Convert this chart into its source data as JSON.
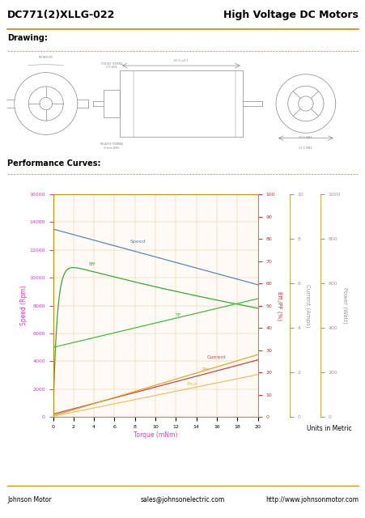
{
  "title_left": "DC771(2)XLLG-022",
  "title_right": "High Voltage DC Motors",
  "section_drawing": "Drawing:",
  "section_curves": "Performance Curves:",
  "xlabel": "Torque (mNm)",
  "ylabel_left": "Speed (Rpm)",
  "ylabel_right1": "Eff./PF (%)",
  "ylabel_right2": "Current (Amps)",
  "ylabel_right3": "Power (Watt)",
  "xlim": [
    0,
    20
  ],
  "ylim_speed": [
    0,
    16000
  ],
  "xticks": [
    0,
    2,
    4,
    6,
    8,
    10,
    12,
    14,
    16,
    18,
    20
  ],
  "yticks_speed": [
    0,
    2000,
    4000,
    6000,
    8000,
    10000,
    12000,
    14000,
    16000
  ],
  "yticks_eff": [
    0,
    10,
    20,
    30,
    40,
    50,
    60,
    70,
    80,
    90,
    100
  ],
  "yticks_current": [
    0.0,
    2.0,
    4.0,
    6.0,
    8.0,
    10.0
  ],
  "yticks_power": [
    0,
    200,
    400,
    600,
    800,
    1000
  ],
  "speed_color": "#5588bb",
  "eff_color": "#33aa33",
  "tf_color": "#33aa33",
  "current_color": "#cc4444",
  "pin_color": "#ddaa22",
  "pout_color": "#ddaa22",
  "xlabel_color": "#cc44cc",
  "ylabel_left_color": "#cc44cc",
  "ylabel_right1_color": "#cc3333",
  "ylabel_right2_color": "#999999",
  "ylabel_right3_color": "#999999",
  "footer_left": "Johnson Motor",
  "footer_center": "sales@johnsonelectric.com",
  "footer_right": "http://www.johnsonmotor.com",
  "units_text": "Units in Metric",
  "background_color": "#ffffff",
  "plot_bg_color": "#fffaf5",
  "grid_color": "#e8c8a0",
  "border_color": "#cc8800",
  "drawing_color": "#888888"
}
